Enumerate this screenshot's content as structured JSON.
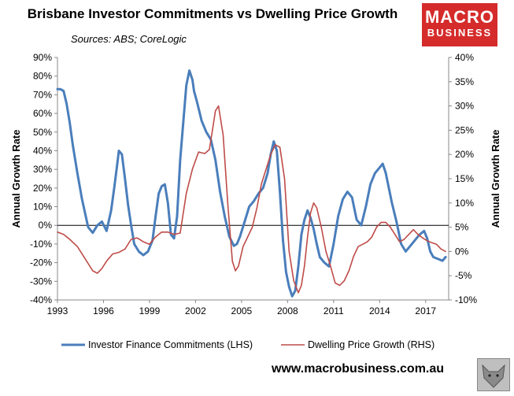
{
  "title": "Brisbane Investor Commitments vs Dwelling Price Growth",
  "sources": "Sources: ABS; CoreLogic",
  "logo": {
    "line1": "MACRO",
    "line2": "BUSINESS"
  },
  "footer_url": "www.macrobusiness.com.au",
  "chart_data": {
    "type": "line",
    "title": "Brisbane Investor Commitments vs Dwelling Price Growth",
    "ylabel_left": "Annual Growth Rate",
    "ylabel_right": "Annual Growth Rate",
    "ylim_left": [
      -40,
      90
    ],
    "ylim_right": [
      -10,
      40
    ],
    "left_ticks": [
      "90%",
      "80%",
      "70%",
      "60%",
      "50%",
      "40%",
      "30%",
      "20%",
      "10%",
      "0%",
      "-10%",
      "-20%",
      "-30%",
      "-40%"
    ],
    "right_ticks": [
      "40%",
      "35%",
      "30%",
      "25%",
      "20%",
      "15%",
      "10%",
      "5%",
      "0%",
      "-5%",
      "-10%"
    ],
    "x_ticks": [
      "1993",
      "1996",
      "1999",
      "2002",
      "2005",
      "2008",
      "2011",
      "2014",
      "2017"
    ],
    "xlim": [
      1993,
      2018.5
    ],
    "colors": {
      "investor": "#4a7ebb",
      "price": "#be4b48",
      "zero_line": "#000000"
    },
    "series": [
      {
        "name": "Investor Finance Commitments (LHS)",
        "axis": "left",
        "x": [
          1993.0,
          1993.2,
          1993.4,
          1993.6,
          1993.8,
          1994.0,
          1994.3,
          1994.6,
          1995.0,
          1995.3,
          1995.6,
          1995.9,
          1996.2,
          1996.5,
          1996.7,
          1996.9,
          1997.0,
          1997.2,
          1997.4,
          1997.6,
          1997.8,
          1998.0,
          1998.3,
          1998.6,
          1998.9,
          1999.2,
          1999.4,
          1999.6,
          1999.8,
          2000.0,
          2000.2,
          2000.4,
          2000.6,
          2000.8,
          2001.0,
          2001.2,
          2001.4,
          2001.6,
          2001.8,
          2001.9,
          2002.1,
          2002.4,
          2002.7,
          2003.0,
          2003.3,
          2003.6,
          2003.9,
          2004.2,
          2004.5,
          2004.7,
          2004.9,
          2005.2,
          2005.5,
          2005.8,
          2006.1,
          2006.4,
          2006.7,
          2006.9,
          2007.1,
          2007.3,
          2007.5,
          2007.7,
          2007.9,
          2008.1,
          2008.3,
          2008.5,
          2008.7,
          2008.9,
          2009.1,
          2009.3,
          2009.5,
          2009.7,
          2009.9,
          2010.1,
          2010.4,
          2010.7,
          2011.0,
          2011.3,
          2011.6,
          2011.9,
          2012.2,
          2012.5,
          2012.8,
          2013.1,
          2013.4,
          2013.7,
          2014.0,
          2014.2,
          2014.4,
          2014.6,
          2014.8,
          2015.1,
          2015.4,
          2015.7,
          2016.0,
          2016.3,
          2016.6,
          2016.9,
          2017.1,
          2017.3,
          2017.5,
          2017.8,
          2018.1,
          2018.3
        ],
        "y": [
          73,
          73,
          72,
          65,
          55,
          43,
          28,
          14,
          -1,
          -4,
          0,
          2,
          -3,
          8,
          20,
          33,
          40,
          38,
          25,
          11,
          0,
          -10,
          -14,
          -16,
          -14,
          -8,
          5,
          17,
          21,
          22,
          12,
          -5,
          -7,
          5,
          35,
          55,
          75,
          83,
          78,
          72,
          66,
          56,
          50,
          46,
          35,
          18,
          5,
          -6,
          -11,
          -10,
          -6,
          2,
          10,
          13,
          17,
          20,
          28,
          38,
          45,
          40,
          18,
          -8,
          -25,
          -33,
          -38,
          -35,
          -22,
          -5,
          3,
          8,
          4,
          -2,
          -10,
          -17,
          -20,
          -22,
          -10,
          5,
          14,
          18,
          15,
          3,
          0,
          10,
          22,
          28,
          31,
          33,
          28,
          20,
          12,
          2,
          -10,
          -14,
          -11,
          -8,
          -5,
          -3,
          -7,
          -14,
          -17,
          -18,
          -19,
          -17
        ]
      },
      {
        "name": "Dwelling Price Growth (RHS)",
        "axis": "right",
        "x": [
          1993.0,
          1993.4,
          1993.8,
          1994.3,
          1994.8,
          1995.3,
          1995.6,
          1995.9,
          1996.2,
          1996.6,
          1997.0,
          1997.4,
          1997.8,
          1998.2,
          1998.6,
          1999.0,
          1999.4,
          1999.8,
          2000.2,
          2000.6,
          2001.0,
          2001.4,
          2001.8,
          2002.2,
          2002.6,
          2002.9,
          2003.1,
          2003.3,
          2003.5,
          2003.8,
          2004.1,
          2004.4,
          2004.6,
          2004.8,
          2005.1,
          2005.4,
          2005.7,
          2006.0,
          2006.3,
          2006.6,
          2006.9,
          2007.2,
          2007.5,
          2007.8,
          2008.1,
          2008.4,
          2008.7,
          2008.9,
          2009.1,
          2009.3,
          2009.5,
          2009.7,
          2009.9,
          2010.2,
          2010.5,
          2010.8,
          2011.1,
          2011.4,
          2011.7,
          2012.0,
          2012.3,
          2012.6,
          2012.9,
          2013.2,
          2013.5,
          2013.8,
          2014.1,
          2014.4,
          2014.7,
          2015.0,
          2015.3,
          2015.6,
          2015.9,
          2016.2,
          2016.5,
          2016.8,
          2017.1,
          2017.4,
          2017.7,
          2018.0,
          2018.3
        ],
        "y": [
          4,
          3.5,
          2.5,
          1,
          -1.5,
          -4,
          -4.5,
          -3.5,
          -2,
          -0.5,
          -0.2,
          0.5,
          2.5,
          2.8,
          2,
          1.5,
          3,
          4,
          4,
          3.5,
          3.8,
          12,
          17,
          20.5,
          20.2,
          21,
          25,
          29,
          30,
          24,
          10,
          -2,
          -4,
          -3,
          1,
          3,
          5,
          9,
          14,
          17,
          20,
          22,
          21.5,
          15,
          0,
          -6,
          -8.5,
          -7,
          -3,
          3,
          8,
          10,
          9,
          5,
          0,
          -3,
          -6.5,
          -7,
          -6,
          -4,
          -1,
          1,
          1.5,
          2,
          3,
          5,
          6,
          6,
          5,
          3.5,
          2,
          2.5,
          3.5,
          4.5,
          3.5,
          2.8,
          2.2,
          1.8,
          1.5,
          0.5,
          0
        ]
      }
    ],
    "legend": [
      "Investor Finance Commitments (LHS)",
      "Dwelling Price Growth (RHS)"
    ],
    "legend_position": "bottom"
  }
}
